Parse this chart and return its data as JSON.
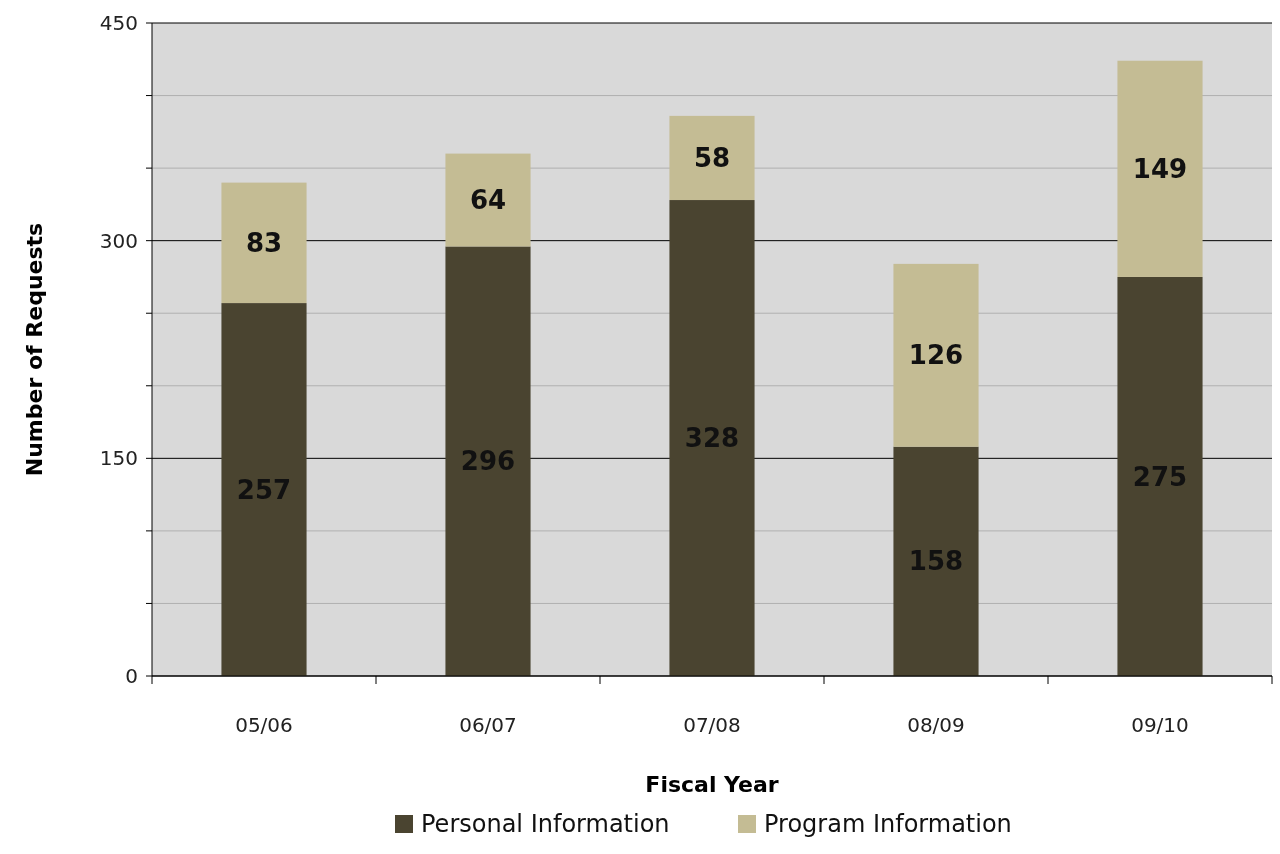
{
  "chart_data": {
    "type": "bar",
    "stacked": true,
    "xlabel": "Fiscal Year",
    "ylabel": "Number of Requests",
    "categories": [
      "05/06",
      "06/07",
      "07/08",
      "08/09",
      "09/10"
    ],
    "series": [
      {
        "name": "Personal Information",
        "color": "#4a4430",
        "values": [
          257,
          296,
          328,
          158,
          275
        ]
      },
      {
        "name": "Program Information",
        "color": "#c4bc94",
        "values": [
          83,
          64,
          58,
          126,
          149
        ]
      }
    ],
    "ylim": [
      0,
      450
    ],
    "yticks": [
      0,
      {
        "value": 50,
        "label": null
      },
      {
        "value": 100,
        "label": null
      },
      150,
      {
        "value": 200,
        "label": null
      },
      {
        "value": 250,
        "label": null
      },
      300,
      {
        "value": 350,
        "label": null
      },
      {
        "value": 400,
        "label": null
      },
      450
    ],
    "grid": "y",
    "data_labels": true,
    "legend": "bottom"
  }
}
